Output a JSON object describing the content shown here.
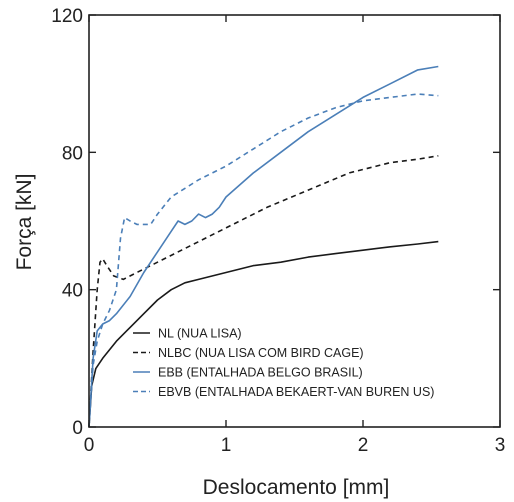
{
  "chart_data": {
    "type": "line",
    "xlabel": "Deslocamento [mm]",
    "ylabel": "Força [kN]",
    "xlim": [
      0,
      3
    ],
    "ylim": [
      0,
      120
    ],
    "x_ticks": [
      0,
      1,
      2,
      3
    ],
    "y_ticks": [
      0,
      40,
      80,
      120
    ],
    "legend_position": "bottom-right",
    "grid": false,
    "series": [
      {
        "name": "NL (NUA LISA)",
        "color": "#1a1a1a",
        "dash": "solid",
        "x": [
          0,
          0.02,
          0.05,
          0.1,
          0.2,
          0.3,
          0.4,
          0.5,
          0.6,
          0.7,
          0.8,
          1.0,
          1.2,
          1.4,
          1.6,
          1.8,
          2.0,
          2.2,
          2.4,
          2.55
        ],
        "y": [
          0,
          12,
          17,
          20,
          25,
          29,
          33,
          37,
          40,
          42,
          43,
          45,
          47,
          48,
          49.5,
          50.5,
          51.5,
          52.5,
          53.3,
          54
        ]
      },
      {
        "name": "NLBC (NUA LISA COM BIRD CAGE)",
        "color": "#1a1a1a",
        "dash": "dashed",
        "x": [
          0,
          0.03,
          0.06,
          0.08,
          0.1,
          0.13,
          0.18,
          0.25,
          0.35,
          0.5,
          0.7,
          1.0,
          1.3,
          1.6,
          1.9,
          2.2,
          2.4,
          2.55
        ],
        "y": [
          0,
          22,
          40,
          48,
          49,
          47,
          44,
          43,
          45,
          48,
          52,
          58,
          64,
          69,
          74,
          77,
          78,
          79
        ]
      },
      {
        "name": "EBB (ENTALHADA BELGO BRASIL)",
        "color": "#4b7fb8",
        "dash": "solid",
        "x": [
          0,
          0.03,
          0.06,
          0.1,
          0.15,
          0.2,
          0.3,
          0.4,
          0.5,
          0.6,
          0.65,
          0.7,
          0.75,
          0.8,
          0.85,
          0.9,
          0.95,
          1.0,
          1.2,
          1.4,
          1.6,
          1.8,
          2.0,
          2.2,
          2.4,
          2.55
        ],
        "y": [
          0,
          20,
          28,
          30,
          31,
          33,
          38,
          45,
          51,
          57,
          60,
          59,
          60,
          62,
          61,
          62,
          64,
          67,
          74,
          80,
          86,
          91,
          96,
          100,
          104,
          105
        ]
      },
      {
        "name": "EBVB (ENTALHADA BEKAERT-VAN BUREN US)",
        "color": "#4b7fb8",
        "dash": "dashed",
        "x": [
          0,
          0.03,
          0.06,
          0.1,
          0.15,
          0.2,
          0.23,
          0.26,
          0.3,
          0.35,
          0.4,
          0.45,
          0.5,
          0.6,
          0.8,
          1.0,
          1.2,
          1.4,
          1.6,
          1.8,
          2.0,
          2.2,
          2.4,
          2.55
        ],
        "y": [
          0,
          18,
          25,
          30,
          34,
          40,
          55,
          61,
          60,
          59,
          59,
          59,
          62,
          67,
          72,
          76,
          81,
          86,
          90,
          93,
          95,
          96,
          97,
          96.5
        ]
      }
    ]
  }
}
